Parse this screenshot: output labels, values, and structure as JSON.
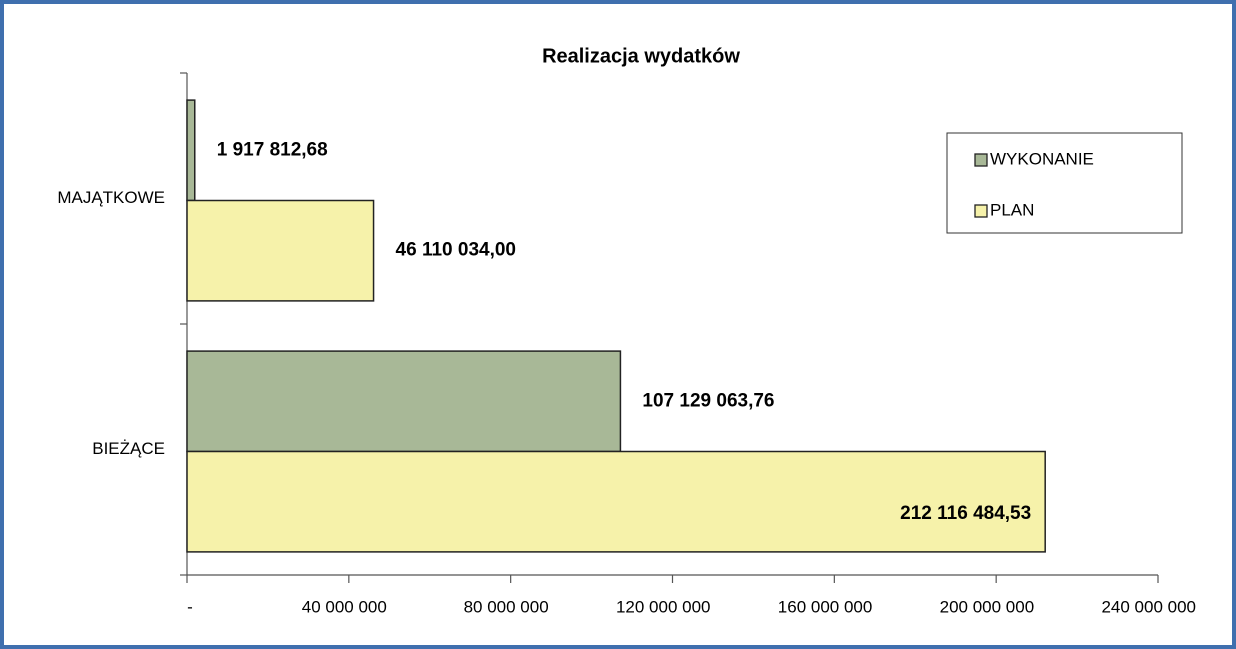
{
  "chart_data": {
    "type": "barh",
    "title": "Realizacja wydatków",
    "categories": [
      "MAJĄTKOWE",
      "BIEŻĄCE"
    ],
    "series": [
      {
        "name": "WYKONANIE",
        "color": "#a8b897",
        "values": [
          1917812.68,
          107129063.76
        ],
        "value_labels": [
          "1 917 812,68",
          "107 129 063,76"
        ]
      },
      {
        "name": "PLAN",
        "color": "#f6f2aa",
        "values": [
          46110034.0,
          212116484.53
        ],
        "value_labels": [
          "46 110 034,00",
          "212 116 484,53"
        ]
      }
    ],
    "xlim": [
      0,
      240000000
    ],
    "xticks": [
      {
        "value": 0,
        "label": "-"
      },
      {
        "value": 40000000,
        "label": "40 000 000"
      },
      {
        "value": 80000000,
        "label": "80 000 000"
      },
      {
        "value": 120000000,
        "label": "120 000 000"
      },
      {
        "value": 160000000,
        "label": "160 000 000"
      },
      {
        "value": 200000000,
        "label": "200 000 000"
      },
      {
        "value": 240000000,
        "label": "240 000 000"
      }
    ],
    "legend": "top-right"
  }
}
